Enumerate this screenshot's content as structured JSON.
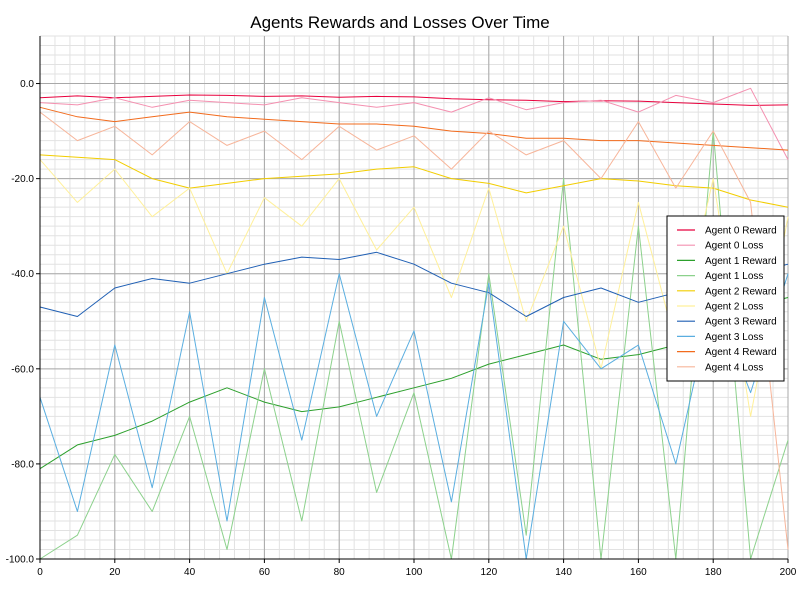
{
  "chart_data": {
    "type": "line",
    "title": "Agents Rewards and Losses Over Time",
    "xlabel": "",
    "ylabel": "",
    "xlim": [
      0,
      200
    ],
    "ylim": [
      -100,
      10
    ],
    "x_ticks": [
      0,
      20,
      40,
      60,
      80,
      100,
      120,
      140,
      160,
      180,
      200
    ],
    "y_ticks": [
      -100,
      -80,
      -60,
      -40,
      -20,
      0
    ],
    "y_tick_labels": [
      "-100.0",
      "-80.0",
      "-60.0",
      "-40.0",
      "-20.0",
      "0.0"
    ],
    "grid": true,
    "legend_position": "right",
    "series": [
      {
        "name": "Agent 0 Reward",
        "color": "#e8003d",
        "x": [
          0,
          10,
          20,
          30,
          40,
          50,
          60,
          70,
          80,
          90,
          100,
          110,
          120,
          130,
          140,
          150,
          160,
          170,
          180,
          190,
          200
        ],
        "values": [
          -3,
          -2.6,
          -3,
          -2.7,
          -2.4,
          -2.5,
          -2.7,
          -2.6,
          -2.9,
          -2.7,
          -2.8,
          -3.2,
          -3.4,
          -3.5,
          -3.8,
          -3.6,
          -3.7,
          -4,
          -4.3,
          -4.6,
          -4.5
        ]
      },
      {
        "name": "Agent 0 Loss",
        "color": "#f490b0",
        "x": [
          0,
          10,
          20,
          30,
          40,
          50,
          60,
          70,
          80,
          90,
          100,
          110,
          120,
          130,
          140,
          150,
          160,
          170,
          180,
          190,
          200
        ],
        "values": [
          -4,
          -4.5,
          -3,
          -5,
          -3.5,
          -4,
          -4.5,
          -3,
          -4,
          -5,
          -4,
          -6,
          -3,
          -5.5,
          -4,
          -3.5,
          -6,
          -2.5,
          -4,
          -1,
          -16
        ]
      },
      {
        "name": "Agent 1 Reward",
        "color": "#2ca02c",
        "x": [
          0,
          10,
          20,
          30,
          40,
          50,
          60,
          70,
          80,
          90,
          100,
          110,
          120,
          130,
          140,
          150,
          160,
          170,
          180,
          190,
          200
        ],
        "values": [
          -81,
          -76,
          -74,
          -71,
          -67,
          -64,
          -67,
          -69,
          -68,
          -66,
          -64,
          -62,
          -59,
          -57,
          -55,
          -58,
          -57,
          -55,
          -52,
          -47,
          -45
        ]
      },
      {
        "name": "Agent 1 Loss",
        "color": "#8cd18c",
        "x": [
          0,
          10,
          20,
          30,
          40,
          50,
          60,
          70,
          80,
          90,
          100,
          110,
          120,
          130,
          140,
          150,
          160,
          170,
          180,
          190,
          200
        ],
        "values": [
          -100,
          -95,
          -78,
          -90,
          -70,
          -98,
          -60,
          -92,
          -50,
          -86,
          -65,
          -100,
          -40,
          -95,
          -20,
          -100,
          -30,
          -100,
          -10,
          -100,
          -75
        ]
      },
      {
        "name": "Agent 2 Reward",
        "color": "#f2cd00",
        "x": [
          0,
          10,
          20,
          30,
          40,
          50,
          60,
          70,
          80,
          90,
          100,
          110,
          120,
          130,
          140,
          150,
          160,
          170,
          180,
          190,
          200
        ],
        "values": [
          -15,
          -15.5,
          -16,
          -20,
          -22,
          -21,
          -20,
          -19.5,
          -19,
          -18,
          -17.5,
          -20,
          -21,
          -23,
          -21.5,
          -20,
          -20.5,
          -21.5,
          -22,
          -24.5,
          -26
        ]
      },
      {
        "name": "Agent 2 Loss",
        "color": "#fff09a",
        "x": [
          0,
          10,
          20,
          30,
          40,
          50,
          60,
          70,
          80,
          90,
          100,
          110,
          120,
          130,
          140,
          150,
          160,
          170,
          180,
          190,
          200
        ],
        "values": [
          -16,
          -25,
          -18,
          -28,
          -22,
          -40,
          -24,
          -30,
          -20,
          -35,
          -26,
          -45,
          -22,
          -50,
          -30,
          -60,
          -25,
          -55,
          -20,
          -70,
          -28
        ]
      },
      {
        "name": "Agent 3 Reward",
        "color": "#1f5fb4",
        "x": [
          0,
          10,
          20,
          30,
          40,
          50,
          60,
          70,
          80,
          90,
          100,
          110,
          120,
          130,
          140,
          150,
          160,
          170,
          180,
          190,
          200
        ],
        "values": [
          -47,
          -49,
          -43,
          -41,
          -42,
          -40,
          -38,
          -36.5,
          -37,
          -35.5,
          -38,
          -42,
          -44,
          -49,
          -45,
          -43,
          -46,
          -44,
          -43,
          -40,
          -38
        ]
      },
      {
        "name": "Agent 3 Loss",
        "color": "#5aaee0",
        "x": [
          0,
          10,
          20,
          30,
          40,
          50,
          60,
          70,
          80,
          90,
          100,
          110,
          120,
          130,
          140,
          150,
          160,
          170,
          180,
          190,
          200
        ],
        "values": [
          -66,
          -90,
          -55,
          -85,
          -48,
          -92,
          -45,
          -75,
          -40,
          -70,
          -52,
          -88,
          -42,
          -100,
          -50,
          -60,
          -55,
          -80,
          -45,
          -65,
          -40
        ]
      },
      {
        "name": "Agent 4 Reward",
        "color": "#f26b1d",
        "x": [
          0,
          10,
          20,
          30,
          40,
          50,
          60,
          70,
          80,
          90,
          100,
          110,
          120,
          130,
          140,
          150,
          160,
          170,
          180,
          190,
          200
        ],
        "values": [
          -5,
          -7,
          -8,
          -7,
          -6,
          -7,
          -7.5,
          -8,
          -8.5,
          -8.5,
          -9,
          -10,
          -10.5,
          -11.5,
          -11.5,
          -12,
          -12,
          -12.5,
          -13,
          -13.5,
          -14
        ]
      },
      {
        "name": "Agent 4 Loss",
        "color": "#f7b59a",
        "x": [
          0,
          10,
          20,
          30,
          40,
          50,
          60,
          70,
          80,
          90,
          100,
          110,
          120,
          130,
          140,
          150,
          160,
          170,
          180,
          190,
          200
        ],
        "values": [
          -6,
          -12,
          -9,
          -15,
          -8,
          -13,
          -10,
          -16,
          -9,
          -14,
          -11,
          -18,
          -10,
          -15,
          -12,
          -20,
          -8,
          -22,
          -10,
          -25,
          -98
        ]
      }
    ]
  }
}
